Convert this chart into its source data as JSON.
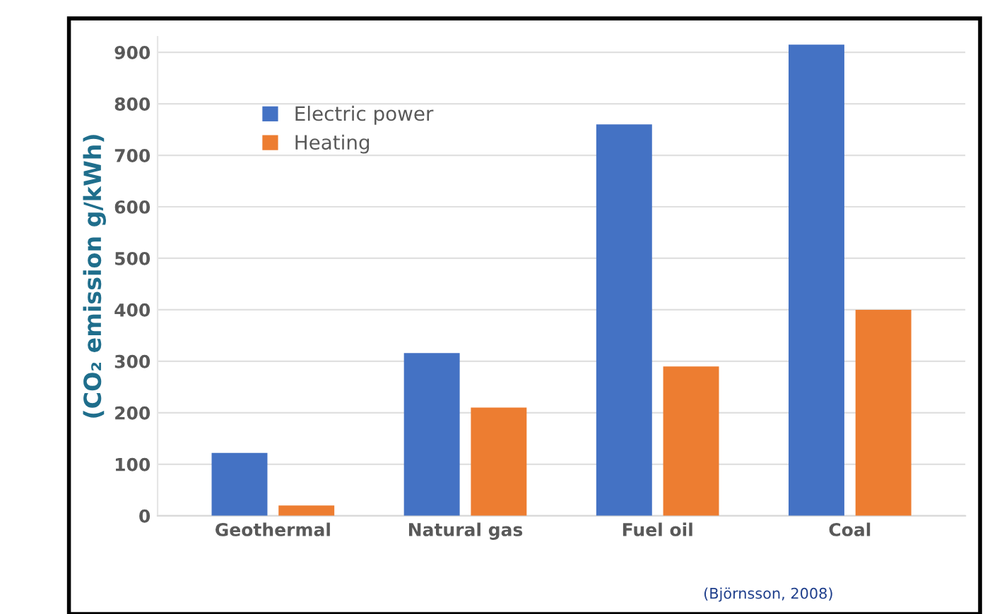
{
  "chart_data": {
    "type": "bar",
    "ylabel": "(CO₂ emission g/kWh)",
    "categories": [
      "Geothermal",
      "Natural gas",
      "Fuel oil",
      "Coal"
    ],
    "series": [
      {
        "name": "Electric power",
        "color": "#4472c4",
        "values": [
          122,
          316,
          760,
          915
        ]
      },
      {
        "name": "Heating",
        "color": "#ed7d31",
        "values": [
          20,
          210,
          290,
          400
        ]
      }
    ],
    "ylim": [
      0,
      930
    ],
    "yticks": [
      0,
      100,
      200,
      300,
      400,
      500,
      600,
      700,
      800,
      900
    ],
    "grid": "y",
    "legend": "top left",
    "annotations": [
      "(Björnsson, 2008)"
    ]
  }
}
